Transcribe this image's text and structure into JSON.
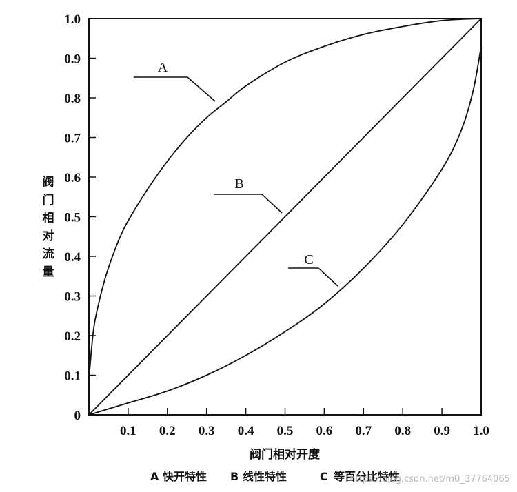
{
  "chart_data": {
    "type": "line",
    "xlabel": "阀门相对开度",
    "ylabel": "阀门相对流量",
    "xlim": [
      0,
      1.0
    ],
    "ylim": [
      0,
      1.0
    ],
    "x_ticks": [
      0.1,
      0.2,
      0.3,
      0.4,
      0.5,
      0.6,
      0.7,
      0.8,
      0.9,
      1.0
    ],
    "x_tick_labels": [
      "0.1",
      "0.2",
      "0.3",
      "0.4",
      "0.5",
      "0.6",
      "0.7",
      "0.8",
      "0.9",
      "1.0"
    ],
    "y_ticks": [
      0,
      0.1,
      0.2,
      0.3,
      0.4,
      0.5,
      0.6,
      0.7,
      0.8,
      0.9,
      1.0
    ],
    "y_tick_labels": [
      "0",
      "0.1",
      "0.2",
      "0.3",
      "0.4",
      "0.5",
      "0.6",
      "0.7",
      "0.8",
      "0.9",
      "1.0"
    ],
    "grid": false,
    "series": [
      {
        "name": "A",
        "x": [
          0,
          0.01,
          0.02,
          0.04,
          0.06,
          0.08,
          0.1,
          0.15,
          0.2,
          0.25,
          0.3,
          0.35,
          0.4,
          0.5,
          0.6,
          0.7,
          0.8,
          0.9,
          1.0
        ],
        "y": [
          0.09,
          0.2,
          0.26,
          0.34,
          0.4,
          0.45,
          0.49,
          0.57,
          0.64,
          0.7,
          0.75,
          0.79,
          0.83,
          0.89,
          0.93,
          0.96,
          0.98,
          0.995,
          1.0
        ]
      },
      {
        "name": "B",
        "x": [
          0,
          1.0
        ],
        "y": [
          0,
          1.0
        ]
      },
      {
        "name": "C",
        "x": [
          0,
          0.1,
          0.2,
          0.3,
          0.4,
          0.5,
          0.6,
          0.7,
          0.8,
          0.9,
          0.95,
          0.98,
          1.0
        ],
        "y": [
          0,
          0.03,
          0.06,
          0.1,
          0.15,
          0.21,
          0.28,
          0.37,
          0.48,
          0.62,
          0.72,
          0.82,
          0.93
        ]
      }
    ],
    "annotations": [
      {
        "label": "A",
        "series": "A"
      },
      {
        "label": "B",
        "series": "B"
      },
      {
        "label": "C",
        "series": "C"
      }
    ]
  },
  "legend": {
    "items": [
      {
        "key": "A",
        "text": "快开特性"
      },
      {
        "key": "B",
        "text": "线性特性"
      },
      {
        "key": "C",
        "text": "等百分比特性"
      }
    ]
  },
  "watermark": "https://blog.csdn.net/m0_37764065"
}
